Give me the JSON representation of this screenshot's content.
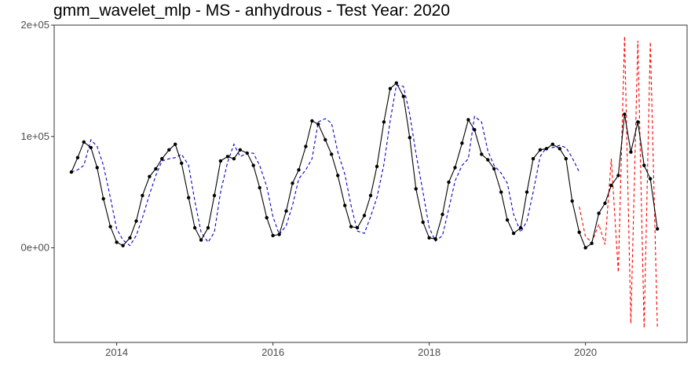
{
  "chart_data": {
    "type": "line",
    "title": "gmm_wavelet_mlp - MS - anhydrous - Test Year: 2020",
    "xlabel": "",
    "ylabel": "",
    "xlim": [
      2013.2,
      2021.3
    ],
    "ylim": [
      -85000,
      200000
    ],
    "x_ticks": [
      {
        "value": 2014,
        "label": "2014"
      },
      {
        "value": 2016,
        "label": "2016"
      },
      {
        "value": 2018,
        "label": "2018"
      },
      {
        "value": 2020,
        "label": "2020"
      }
    ],
    "y_ticks": [
      {
        "value": 0,
        "label": "0e+00"
      },
      {
        "value": 100000,
        "label": "1e+05"
      },
      {
        "value": 200000,
        "label": "2e+05"
      }
    ],
    "grid": false,
    "legend": "none",
    "series": [
      {
        "role": "actual",
        "color": "#000000",
        "style": "solid-with-points",
        "x": [
          2013.42,
          2013.5,
          2013.58,
          2013.67,
          2013.75,
          2013.83,
          2013.92,
          2014.0,
          2014.08,
          2014.17,
          2014.25,
          2014.33,
          2014.42,
          2014.5,
          2014.58,
          2014.67,
          2014.75,
          2014.83,
          2014.92,
          2015.0,
          2015.08,
          2015.17,
          2015.25,
          2015.33,
          2015.42,
          2015.5,
          2015.58,
          2015.67,
          2015.75,
          2015.83,
          2015.92,
          2016.0,
          2016.08,
          2016.17,
          2016.25,
          2016.33,
          2016.42,
          2016.5,
          2016.58,
          2016.67,
          2016.75,
          2016.83,
          2016.92,
          2017.0,
          2017.08,
          2017.17,
          2017.25,
          2017.33,
          2017.42,
          2017.5,
          2017.58,
          2017.67,
          2017.75,
          2017.83,
          2017.92,
          2018.0,
          2018.08,
          2018.17,
          2018.25,
          2018.33,
          2018.42,
          2018.5,
          2018.58,
          2018.67,
          2018.75,
          2018.83,
          2018.92,
          2019.0,
          2019.08,
          2019.17,
          2019.25,
          2019.33,
          2019.42,
          2019.5,
          2019.58,
          2019.67,
          2019.75,
          2019.83,
          2019.92,
          2020.0,
          2020.08,
          2020.17,
          2020.25,
          2020.33,
          2020.42,
          2020.5,
          2020.58,
          2020.67,
          2020.75,
          2020.83,
          2020.92
        ],
        "y": [
          68000,
          81000,
          95000,
          90000,
          72000,
          44000,
          19000,
          5000,
          2000,
          9000,
          24000,
          47000,
          64000,
          71000,
          80000,
          88000,
          93000,
          76000,
          45000,
          18000,
          7000,
          18000,
          47000,
          78000,
          82000,
          80000,
          88000,
          85000,
          74000,
          54000,
          27000,
          11000,
          12000,
          33000,
          58000,
          70000,
          91000,
          114000,
          111000,
          97000,
          84000,
          65000,
          38000,
          19000,
          18000,
          29000,
          47000,
          73000,
          113000,
          143000,
          148000,
          136000,
          99000,
          53000,
          23000,
          9000,
          8000,
          30000,
          59000,
          72000,
          94000,
          115000,
          106000,
          84000,
          79000,
          71000,
          50000,
          25000,
          13000,
          18000,
          50000,
          80000,
          88000,
          89000,
          93000,
          89000,
          80000,
          42000,
          14000,
          0,
          4000,
          31000,
          40000,
          56000,
          65000,
          120000,
          86000,
          113000,
          74000,
          62000,
          17000
        ]
      },
      {
        "role": "fitted",
        "color": "#0000cc",
        "style": "dashed",
        "x": [
          2013.42,
          2013.5,
          2013.58,
          2013.67,
          2013.75,
          2013.83,
          2013.92,
          2014.0,
          2014.08,
          2014.17,
          2014.25,
          2014.33,
          2014.42,
          2014.5,
          2014.58,
          2014.67,
          2014.75,
          2014.83,
          2014.92,
          2015.0,
          2015.08,
          2015.17,
          2015.25,
          2015.33,
          2015.42,
          2015.5,
          2015.58,
          2015.67,
          2015.75,
          2015.83,
          2015.92,
          2016.0,
          2016.08,
          2016.17,
          2016.25,
          2016.33,
          2016.42,
          2016.5,
          2016.58,
          2016.67,
          2016.75,
          2016.83,
          2016.92,
          2017.0,
          2017.08,
          2017.17,
          2017.25,
          2017.33,
          2017.42,
          2017.5,
          2017.58,
          2017.67,
          2017.75,
          2017.83,
          2017.92,
          2018.0,
          2018.08,
          2018.17,
          2018.25,
          2018.33,
          2018.42,
          2018.5,
          2018.58,
          2018.67,
          2018.75,
          2018.83,
          2018.92,
          2019.0,
          2019.08,
          2019.17,
          2019.25,
          2019.33,
          2019.42,
          2019.5,
          2019.58,
          2019.67,
          2019.75,
          2019.83,
          2019.92
        ],
        "y": [
          68000,
          70000,
          74000,
          97000,
          91000,
          74000,
          45000,
          17000,
          7000,
          2000,
          11000,
          27000,
          48000,
          65000,
          78000,
          80000,
          81000,
          84000,
          74000,
          42000,
          14000,
          5000,
          14000,
          50000,
          77000,
          93000,
          82000,
          85000,
          85000,
          74000,
          55000,
          28000,
          12000,
          20000,
          38000,
          62000,
          70000,
          80000,
          113000,
          116000,
          112000,
          86000,
          66000,
          38000,
          15000,
          13000,
          28000,
          45000,
          75000,
          114000,
          146000,
          145000,
          120000,
          85000,
          50000,
          18000,
          6000,
          11000,
          35000,
          60000,
          74000,
          80000,
          118000,
          113000,
          87000,
          74000,
          67000,
          58000,
          30000,
          14000,
          24000,
          50000,
          82000,
          90000,
          90000,
          92000,
          90000,
          81000,
          68000
        ]
      },
      {
        "role": "forecast",
        "color": "#ff0000",
        "style": "dashed",
        "x": [
          2019.92,
          2020.0,
          2020.08,
          2020.17,
          2020.25,
          2020.33,
          2020.42,
          2020.5,
          2020.58,
          2020.67,
          2020.75,
          2020.83,
          2020.92
        ],
        "y": [
          37000,
          10000,
          5000,
          21000,
          3000,
          80000,
          -22000,
          190000,
          -68000,
          186000,
          -72000,
          185000,
          -72000
        ]
      }
    ]
  }
}
